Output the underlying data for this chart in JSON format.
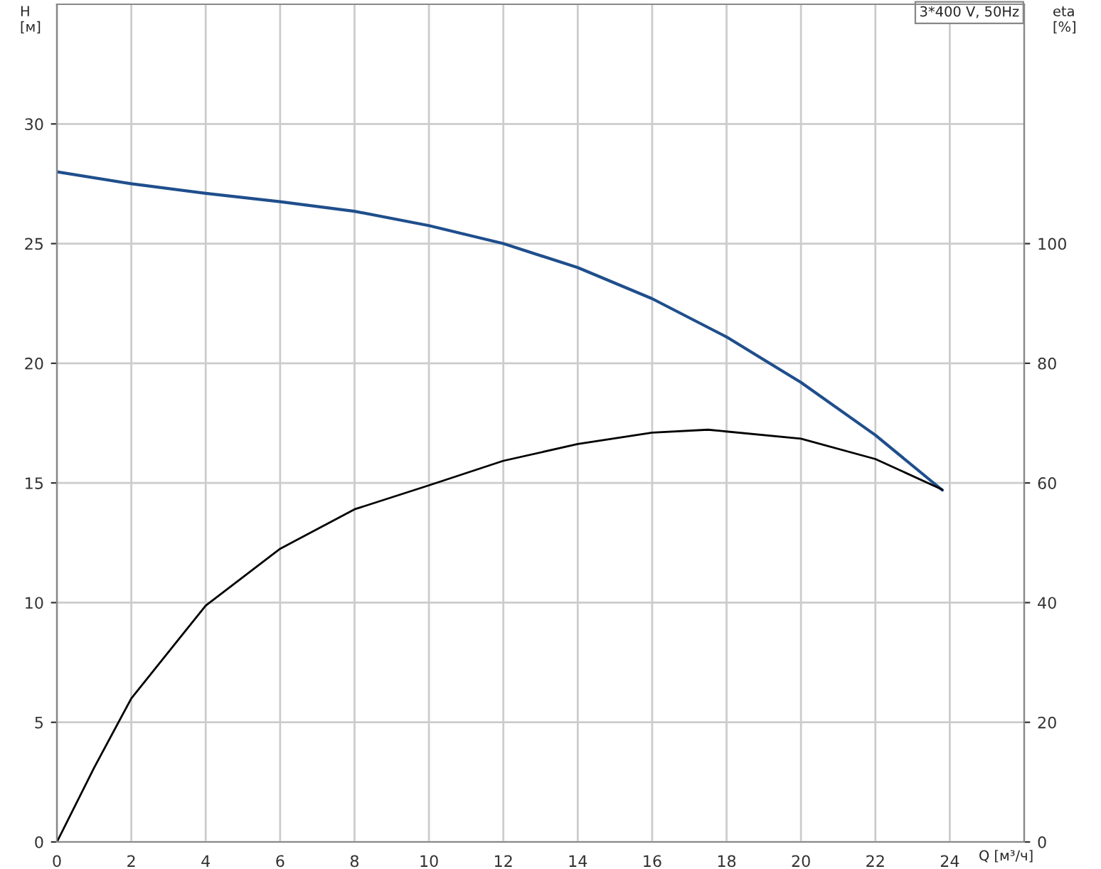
{
  "chart_data": {
    "type": "line",
    "xlabel": "Q [м³/ч]",
    "ylabel": "H\n[м]",
    "y2label": "eta\n[%]",
    "annotations": [
      "3*400 V, 50Hz"
    ],
    "series": [
      {
        "color": "#1f4e8c",
        "x": [
          0,
          2,
          4,
          6,
          8,
          10,
          12,
          14,
          16,
          18,
          20,
          22,
          23.8
        ],
        "values": [
          28,
          27.5,
          27.1,
          26.75,
          26.35,
          25.75,
          25.0,
          24.0,
          22.7,
          21.1,
          19.2,
          17.0,
          14.7
        ]
      },
      {
        "color": "#000000",
        "axis": "y2",
        "x": [
          0,
          1,
          2,
          4,
          6,
          8,
          10,
          12,
          14,
          16,
          17.5,
          20,
          22,
          23.8
        ],
        "values": [
          0,
          12.4,
          24,
          39.5,
          49,
          55.6,
          59.6,
          63.7,
          66.5,
          68.4,
          68.9,
          67.4,
          64,
          58.9
        ]
      }
    ],
    "xlim": [
      0,
      26
    ],
    "xticks": [
      0,
      2,
      4,
      6,
      8,
      10,
      12,
      14,
      16,
      18,
      20,
      22,
      24
    ],
    "ylim": [
      0,
      35
    ],
    "yticks": [
      0,
      5,
      10,
      15,
      20,
      25,
      30
    ],
    "y2lim": [
      0,
      140
    ],
    "y2ticks": [
      0,
      20,
      40,
      60,
      80,
      100
    ],
    "grid": true,
    "legend": false,
    "marker": "none",
    "line_style": "solid"
  }
}
